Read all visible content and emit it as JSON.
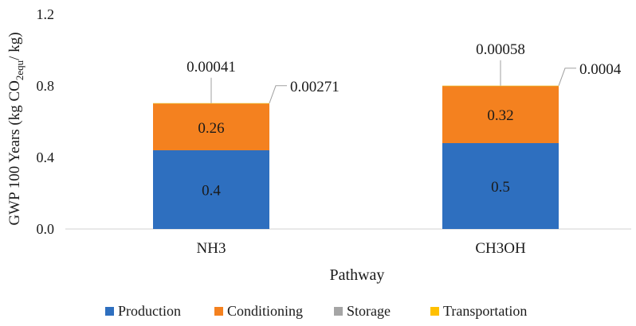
{
  "chart_data": {
    "type": "bar",
    "stacked": true,
    "categories": [
      "NH3",
      "CH3OH"
    ],
    "series": [
      {
        "name": "Production",
        "values": [
          0.44,
          0.48
        ],
        "labels": [
          "0.4",
          "0.5"
        ],
        "color": "#2E6FBF"
      },
      {
        "name": "Conditioning",
        "values": [
          0.26,
          0.32
        ],
        "labels": [
          "0.26",
          "0.32"
        ],
        "color": "#F4811F"
      },
      {
        "name": "Storage",
        "values": [
          0.00271,
          0.0004
        ],
        "labels": [
          "0.00271",
          "0.0004"
        ],
        "color": "#A5A5A5"
      },
      {
        "name": "Transportation",
        "values": [
          0.00041,
          0.00058
        ],
        "labels": [
          "0.00041",
          "0.00058"
        ],
        "color": "#FFC000"
      }
    ],
    "xlabel": "Pathway",
    "ylabel": {
      "base": "GWP 100 Years (kg CO",
      "sub": "2equ",
      "tail": "/ kg)"
    },
    "ylim": [
      0.0,
      1.2
    ],
    "yticks": [
      "0.0",
      "0.4",
      "0.8",
      "1.2"
    ],
    "grid": false,
    "legend_position": "bottom"
  }
}
